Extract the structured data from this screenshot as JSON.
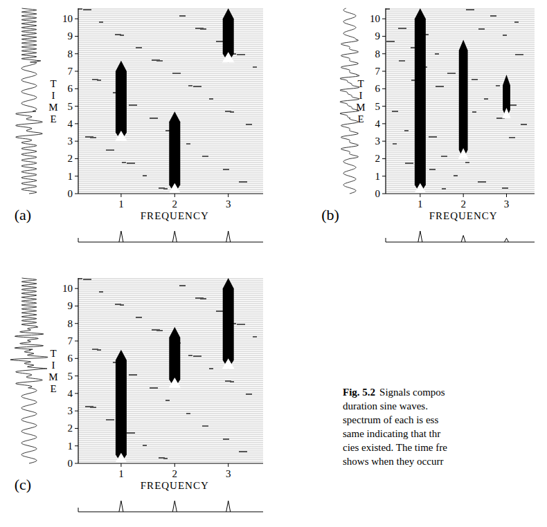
{
  "caption": {
    "label": "Fig. 5.2",
    "lines": [
      "Signals compos",
      "duration sine waves.",
      "spectrum of each is ess",
      "same indicating that thr",
      "cies existed. The time fre",
      "shows when they occurr"
    ]
  },
  "chart_data": [
    {
      "type": "time_frequency",
      "title": "(a)",
      "x_label": "FREQUENCY",
      "y_label": "TIME",
      "xlim": [
        0.2,
        3.65
      ],
      "ylim": [
        0,
        10.6
      ],
      "xticks": [
        1,
        2,
        3
      ],
      "yticks": [
        0,
        1,
        2,
        3,
        4,
        5,
        6,
        7,
        8,
        9,
        10
      ],
      "x": [
        1,
        2,
        3
      ],
      "start": [
        3,
        0,
        7.5
      ],
      "end": [
        7.6,
        4.7,
        10.6
      ],
      "amplitude": [
        1,
        1,
        1
      ],
      "amplitude_lim": [
        0,
        1
      ]
    },
    {
      "type": "time_frequency",
      "title": "(b)",
      "x_label": "FREQUENCY",
      "y_label": "TIME",
      "xlim": [
        0.2,
        3.65
      ],
      "ylim": [
        0,
        10.6
      ],
      "xticks": [
        1,
        2,
        3
      ],
      "yticks": [
        0,
        1,
        2,
        3,
        4,
        5,
        6,
        7,
        8,
        9,
        10
      ],
      "x": [
        1,
        2,
        3
      ],
      "start": [
        0,
        2,
        4.3
      ],
      "end": [
        10.6,
        8.8,
        6.8
      ],
      "amplitude": [
        1,
        0.6,
        0.35
      ],
      "amplitude_lim": [
        0,
        1
      ]
    },
    {
      "type": "time_frequency",
      "title": "(c)",
      "x_label": "FREQUENCY",
      "y_label": "TIME",
      "xlim": [
        0.2,
        3.65
      ],
      "ylim": [
        0,
        10.6
      ],
      "xticks": [
        1,
        2,
        3
      ],
      "yticks": [
        0,
        1,
        2,
        3,
        4,
        5,
        6,
        7,
        8,
        9,
        10
      ],
      "x": [
        1,
        2,
        3
      ],
      "start": [
        0,
        4.3,
        5.4
      ],
      "end": [
        6.5,
        7.8,
        10.6
      ],
      "amplitude": [
        1,
        1,
        1
      ],
      "amplitude_lim": [
        0,
        1
      ]
    }
  ]
}
